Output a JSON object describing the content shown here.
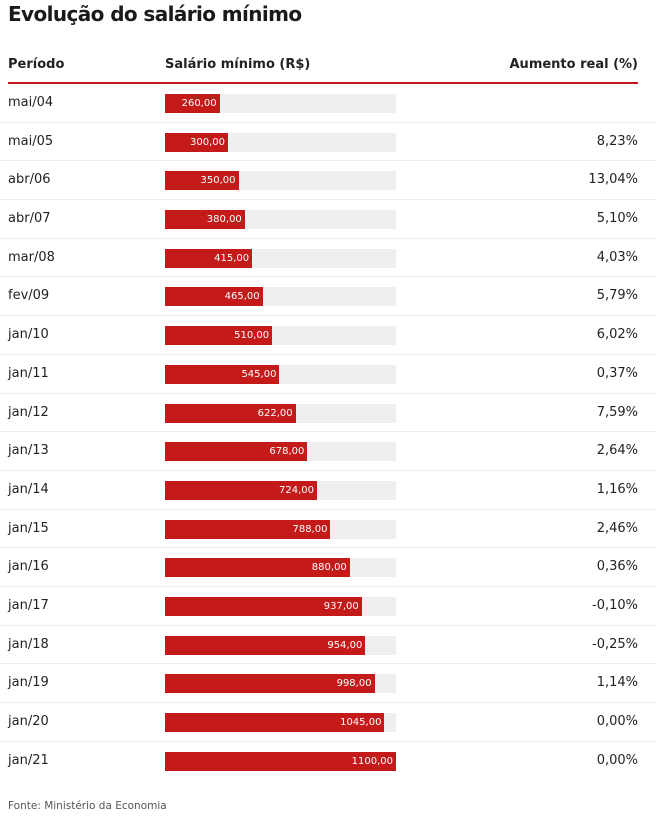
{
  "title": "Evolução do salário mínimo",
  "headers": {
    "period": "Período",
    "salary": "Salário mínimo (R$)",
    "raise": "Aumento real (%)"
  },
  "source": "Fonte: Ministério da Economia",
  "colors": {
    "bar": "#c41a1a",
    "track": "#efeff1",
    "accent_line": "#c0181e"
  },
  "chart_data": {
    "type": "bar",
    "title": "Evolução do salário mínimo",
    "xlabel": "Período",
    "ylabel": "Salário mínimo (R$)",
    "ylim": [
      0,
      1100
    ],
    "categories": [
      "mai/04",
      "mai/05",
      "abr/06",
      "abr/07",
      "mar/08",
      "fev/09",
      "jan/10",
      "jan/11",
      "jan/12",
      "jan/13",
      "jan/14",
      "jan/15",
      "jan/16",
      "jan/17",
      "jan/18",
      "jan/19",
      "jan/20",
      "jan/21"
    ],
    "values": [
      260,
      300,
      350,
      380,
      415,
      465,
      510,
      545,
      622,
      678,
      724,
      788,
      880,
      937,
      954,
      998,
      1045,
      1100
    ],
    "value_labels": [
      "260,00",
      "300,00",
      "350,00",
      "380,00",
      "415,00",
      "465,00",
      "510,00",
      "545,00",
      "622,00",
      "678,00",
      "724,00",
      "788,00",
      "880,00",
      "937,00",
      "954,00",
      "998,00",
      "1045,00",
      "1100,00"
    ],
    "raise_labels": [
      "",
      "8,23%",
      "13,04%",
      "5,10%",
      "4,03%",
      "5,79%",
      "6,02%",
      "0,37%",
      "7,59%",
      "2,64%",
      "1,16%",
      "2,46%",
      "0,36%",
      "-0,10%",
      "-0,25%",
      "1,14%",
      "0,00%",
      "0,00%"
    ]
  }
}
